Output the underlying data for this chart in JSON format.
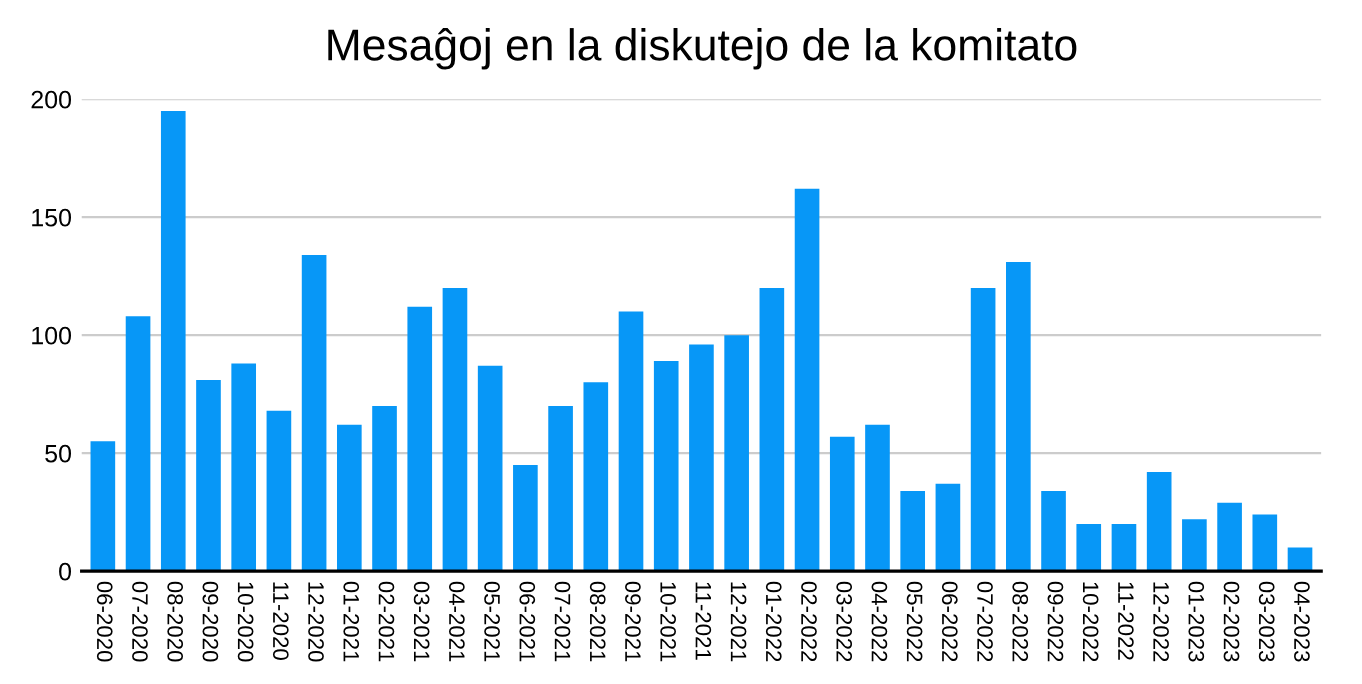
{
  "chart_data": {
    "type": "bar",
    "title": "Mesaĝoj en la diskutejo de la komitato",
    "categories": [
      "06-2020",
      "07-2020",
      "08-2020",
      "09-2020",
      "10-2020",
      "11-2020",
      "12-2020",
      "01-2021",
      "02-2021",
      "03-2021",
      "04-2021",
      "05-2021",
      "06-2021",
      "07-2021",
      "08-2021",
      "09-2021",
      "10-2021",
      "11-2021",
      "12-2021",
      "01-2022",
      "02-2022",
      "03-2022",
      "04-2022",
      "05-2022",
      "06-2022",
      "07-2022",
      "08-2022",
      "09-2022",
      "10-2022",
      "11-2022",
      "12-2022",
      "01-2023",
      "02-2023",
      "03-2023",
      "04-2023"
    ],
    "values": [
      55,
      108,
      195,
      81,
      88,
      68,
      134,
      62,
      70,
      112,
      120,
      87,
      45,
      70,
      80,
      110,
      89,
      96,
      100,
      120,
      162,
      57,
      62,
      34,
      37,
      120,
      131,
      34,
      20,
      20,
      42,
      22,
      29,
      24,
      10
    ],
    "color": "#0797f7",
    "ylim": [
      0,
      200
    ],
    "yticks": [
      0,
      50,
      100,
      150,
      200
    ],
    "grid": "y"
  }
}
